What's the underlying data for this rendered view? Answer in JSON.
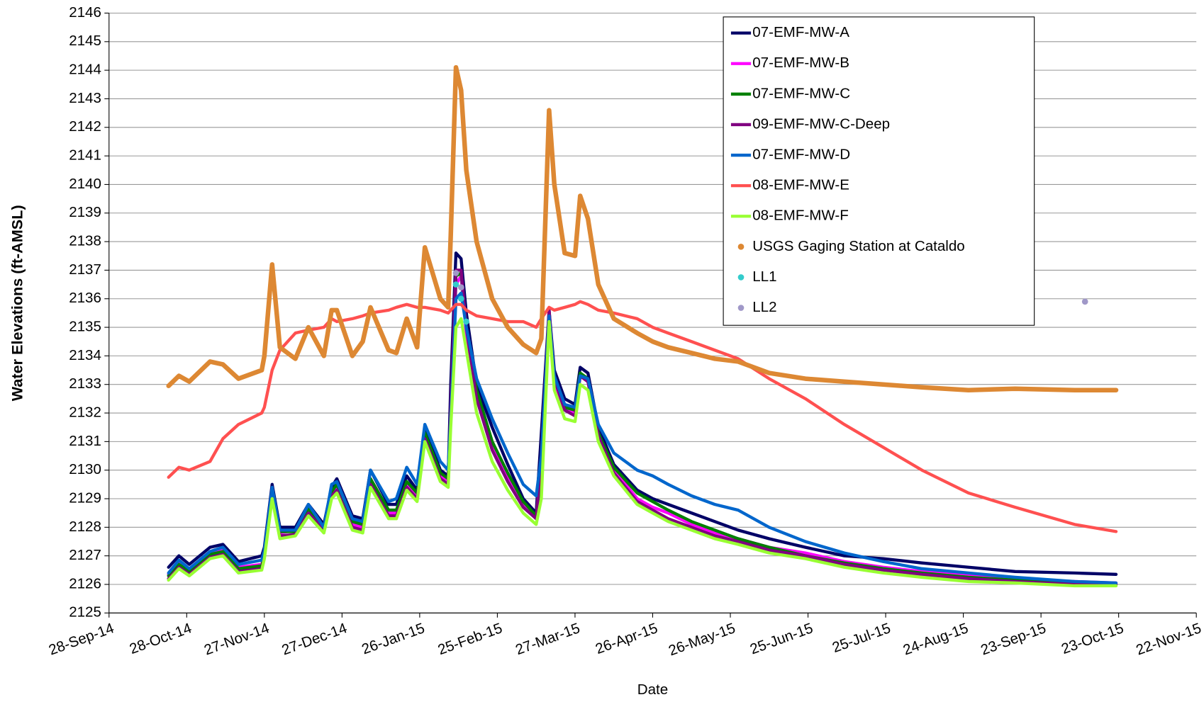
{
  "chart_data": {
    "type": "line",
    "x_label": "Date",
    "y_label": "Water Elevations (ft-AMSL)",
    "xlim": [
      "2014-09-28",
      "2015-11-22"
    ],
    "xticks": [
      {
        "value": "2014-09-28",
        "label": "28-Sep-14"
      },
      {
        "value": "2014-10-28",
        "label": "28-Oct-14"
      },
      {
        "value": "2014-11-27",
        "label": "27-Nov-14"
      },
      {
        "value": "2014-12-27",
        "label": "27-Dec-14"
      },
      {
        "value": "2015-01-26",
        "label": "26-Jan-15"
      },
      {
        "value": "2015-02-25",
        "label": "25-Feb-15"
      },
      {
        "value": "2015-03-27",
        "label": "27-Mar-15"
      },
      {
        "value": "2015-04-26",
        "label": "26-Apr-15"
      },
      {
        "value": "2015-05-26",
        "label": "26-May-15"
      },
      {
        "value": "2015-06-25",
        "label": "25-Jun-15"
      },
      {
        "value": "2015-07-25",
        "label": "25-Jul-15"
      },
      {
        "value": "2015-08-24",
        "label": "24-Aug-15"
      },
      {
        "value": "2015-09-23",
        "label": "23-Sep-15"
      },
      {
        "value": "2015-10-23",
        "label": "23-Oct-15"
      },
      {
        "value": "2015-11-22",
        "label": "22-Nov-15"
      }
    ],
    "ylim": [
      2125,
      2146
    ],
    "yticks": [
      2125,
      2126,
      2127,
      2128,
      2129,
      2130,
      2131,
      2132,
      2133,
      2134,
      2135,
      2136,
      2137,
      2138,
      2139,
      2140,
      2141,
      2142,
      2143,
      2144,
      2145,
      2146
    ],
    "grid": "y",
    "legend": "upper right",
    "x": [
      "2014-10-21",
      "2014-10-25",
      "2014-10-29",
      "2014-11-06",
      "2014-11-11",
      "2014-11-17",
      "2014-11-26",
      "2014-11-27",
      "2014-11-30",
      "2014-12-03",
      "2014-12-09",
      "2014-12-14",
      "2014-12-20",
      "2014-12-23",
      "2014-12-25",
      "2014-12-31",
      "2015-01-04",
      "2015-01-07",
      "2015-01-14",
      "2015-01-17",
      "2015-01-21",
      "2015-01-25",
      "2015-01-28",
      "2015-02-03",
      "2015-02-06",
      "2015-02-07",
      "2015-02-09",
      "2015-02-11",
      "2015-02-13",
      "2015-02-17",
      "2015-02-23",
      "2015-03-01",
      "2015-03-07",
      "2015-03-12",
      "2015-03-14",
      "2015-03-17",
      "2015-03-19",
      "2015-03-23",
      "2015-03-27",
      "2015-03-29",
      "2015-04-01",
      "2015-04-05",
      "2015-04-11",
      "2015-04-20",
      "2015-04-26",
      "2015-05-02",
      "2015-05-11",
      "2015-05-20",
      "2015-05-29",
      "2015-06-10",
      "2015-06-24",
      "2015-07-09",
      "2015-07-24",
      "2015-08-08",
      "2015-08-26",
      "2015-09-13",
      "2015-10-06",
      "2015-10-22"
    ],
    "series": [
      {
        "name": "07-EMF-MW-A",
        "color": "#000066",
        "style": "line",
        "values": [
          2126.6,
          2127.0,
          2126.7,
          2127.3,
          2127.4,
          2126.8,
          2127.0,
          2127.3,
          2129.5,
          2128.0,
          2128.0,
          2128.8,
          2128.1,
          2129.4,
          2129.7,
          2128.4,
          2128.3,
          2130.0,
          2128.8,
          2128.8,
          2129.8,
          2129.3,
          2131.5,
          2130.0,
          2129.8,
          2133.0,
          2137.6,
          2137.4,
          2135.5,
          2133.0,
          2131.5,
          2130.2,
          2129.0,
          2128.5,
          2131.3,
          2135.6,
          2133.5,
          2132.5,
          2132.3,
          2133.6,
          2133.4,
          2131.5,
          2130.2,
          2129.3,
          2129.0,
          2128.8,
          2128.5,
          2128.2,
          2127.9,
          2127.6,
          2127.3,
          2127.0,
          2126.9,
          2126.75,
          2126.6,
          2126.45,
          2126.4,
          2126.35
        ]
      },
      {
        "name": "07-EMF-MW-B",
        "color": "#ff00ff",
        "style": "line",
        "values": [
          2126.35,
          2126.75,
          2126.5,
          2127.1,
          2127.2,
          2126.6,
          2126.7,
          2127.1,
          2129.2,
          2127.8,
          2127.9,
          2128.6,
          2128.0,
          2129.2,
          2129.4,
          2128.1,
          2128.0,
          2129.6,
          2128.5,
          2128.5,
          2129.5,
          2129.1,
          2131.2,
          2129.8,
          2129.6,
          2131.8,
          2136.5,
          2136.8,
          2134.8,
          2132.5,
          2130.8,
          2129.7,
          2128.8,
          2128.3,
          2129.8,
          2135.4,
          2133.1,
          2132.1,
          2132.0,
          2133.3,
          2133.1,
          2131.3,
          2130.0,
          2129.0,
          2128.7,
          2128.5,
          2128.1,
          2127.8,
          2127.6,
          2127.3,
          2127.1,
          2126.8,
          2126.6,
          2126.45,
          2126.3,
          2126.2,
          2126.1,
          2126.05
        ]
      },
      {
        "name": "07-EMF-MW-C",
        "color": "#008000",
        "style": "line",
        "values": [
          2126.3,
          2126.7,
          2126.45,
          2127.05,
          2127.15,
          2126.55,
          2126.65,
          2127.05,
          2129.3,
          2127.85,
          2127.85,
          2128.65,
          2128.0,
          2129.25,
          2129.5,
          2128.2,
          2128.1,
          2129.7,
          2128.6,
          2128.6,
          2129.6,
          2129.2,
          2131.3,
          2129.9,
          2129.7,
          2132.0,
          2136.8,
          2136.9,
          2135.0,
          2132.8,
          2131.0,
          2129.9,
          2128.9,
          2128.4,
          2130.0,
          2135.5,
          2133.2,
          2132.2,
          2132.1,
          2133.4,
          2133.2,
          2131.3,
          2130.1,
          2129.2,
          2128.9,
          2128.6,
          2128.2,
          2127.9,
          2127.6,
          2127.3,
          2127.0,
          2126.75,
          2126.55,
          2126.4,
          2126.25,
          2126.15,
          2126.05,
          2126.0
        ]
      },
      {
        "name": "09-EMF-MW-C-Deep",
        "color": "#800080",
        "style": "line",
        "values": [
          2126.2,
          2126.6,
          2126.35,
          2126.95,
          2127.05,
          2126.45,
          2126.55,
          2126.95,
          2129.1,
          2127.7,
          2127.75,
          2128.5,
          2127.9,
          2129.1,
          2129.3,
          2128.0,
          2127.9,
          2129.5,
          2128.4,
          2128.4,
          2129.4,
          2129.0,
          2131.1,
          2129.7,
          2129.5,
          2132.2,
          2137.0,
          2137.0,
          2135.0,
          2132.5,
          2130.7,
          2129.6,
          2128.7,
          2128.3,
          2130.5,
          2135.6,
          2133.2,
          2132.1,
          2131.9,
          2133.3,
          2133.1,
          2131.2,
          2129.9,
          2128.9,
          2128.6,
          2128.3,
          2128.0,
          2127.7,
          2127.5,
          2127.2,
          2127.0,
          2126.7,
          2126.5,
          2126.35,
          2126.2,
          2126.1,
          2126.0,
          2126.0
        ]
      },
      {
        "name": "07-EMF-MW-D",
        "color": "#0066cc",
        "style": "line",
        "values": [
          2126.4,
          2126.85,
          2126.55,
          2127.15,
          2127.3,
          2126.7,
          2126.85,
          2127.2,
          2129.4,
          2127.9,
          2127.9,
          2128.8,
          2128.0,
          2129.5,
          2129.6,
          2128.3,
          2128.2,
          2130.0,
          2128.9,
          2129.0,
          2130.1,
          2129.5,
          2131.6,
          2130.3,
          2130.0,
          2131.8,
          2136.0,
          2136.2,
          2135.0,
          2133.2,
          2131.8,
          2130.6,
          2129.5,
          2129.1,
          2130.5,
          2135.4,
          2133.3,
          2132.3,
          2132.2,
          2133.3,
          2133.2,
          2131.6,
          2130.6,
          2130.0,
          2129.8,
          2129.5,
          2129.1,
          2128.8,
          2128.6,
          2128.0,
          2127.5,
          2127.1,
          2126.8,
          2126.55,
          2126.4,
          2126.25,
          2126.1,
          2126.05
        ]
      },
      {
        "name": "08-EMF-MW-E",
        "color": "#ff5050",
        "style": "line",
        "values": [
          2129.75,
          2130.1,
          2130.0,
          2130.3,
          2131.1,
          2131.6,
          2132.0,
          2132.2,
          2133.5,
          2134.2,
          2134.8,
          2134.9,
          2135.0,
          2135.3,
          2135.2,
          2135.3,
          2135.4,
          2135.5,
          2135.6,
          2135.7,
          2135.8,
          2135.7,
          2135.7,
          2135.6,
          2135.5,
          2135.6,
          2135.8,
          2135.8,
          2135.6,
          2135.4,
          2135.3,
          2135.2,
          2135.2,
          2135.0,
          2135.3,
          2135.7,
          2135.6,
          2135.7,
          2135.8,
          2135.9,
          2135.8,
          2135.6,
          2135.5,
          2135.3,
          2135.0,
          2134.8,
          2134.5,
          2134.2,
          2133.9,
          2133.2,
          2132.5,
          2131.6,
          2130.8,
          2130.0,
          2129.2,
          2128.7,
          2128.1,
          2127.85
        ]
      },
      {
        "name": "08-EMF-MW-F",
        "color": "#99ff33",
        "style": "line",
        "values": [
          2126.15,
          2126.55,
          2126.3,
          2126.9,
          2127.0,
          2126.4,
          2126.5,
          2126.9,
          2129.0,
          2127.6,
          2127.7,
          2128.4,
          2127.8,
          2129.0,
          2129.2,
          2127.9,
          2127.8,
          2129.4,
          2128.3,
          2128.3,
          2129.3,
          2128.9,
          2131.0,
          2129.6,
          2129.4,
          2131.5,
          2135.0,
          2135.3,
          2134.2,
          2132.0,
          2130.3,
          2129.3,
          2128.5,
          2128.1,
          2129.0,
          2135.2,
          2132.8,
          2131.8,
          2131.7,
          2133.0,
          2132.8,
          2131.0,
          2129.8,
          2128.8,
          2128.5,
          2128.2,
          2127.9,
          2127.6,
          2127.4,
          2127.1,
          2126.9,
          2126.6,
          2126.4,
          2126.25,
          2126.1,
          2126.05,
          2125.95,
          2125.95
        ]
      },
      {
        "name": "USGS Gaging Station at Cataldo",
        "color": "#dd8833",
        "style": "dots-line",
        "values": [
          2132.95,
          2133.3,
          2133.1,
          2133.8,
          2133.7,
          2133.2,
          2133.5,
          2134.0,
          2137.2,
          2134.3,
          2133.9,
          2135.0,
          2134.0,
          2135.6,
          2135.6,
          2134.0,
          2134.5,
          2135.7,
          2134.2,
          2134.1,
          2135.3,
          2134.3,
          2137.8,
          2136.0,
          2135.7,
          2138.2,
          2144.1,
          2143.3,
          2140.5,
          2138.0,
          2136.0,
          2135.0,
          2134.4,
          2134.1,
          2134.6,
          2142.6,
          2140.0,
          2137.6,
          2137.5,
          2139.6,
          2138.8,
          2136.5,
          2135.3,
          2134.8,
          2134.5,
          2134.3,
          2134.1,
          2133.9,
          2133.8,
          2133.4,
          2133.2,
          2133.1,
          2133.0,
          2132.9,
          2132.8,
          2132.85,
          2132.8,
          2132.8
        ]
      },
      {
        "name": "LL1",
        "color": "#33cccc",
        "style": "markers",
        "x": [
          "2015-02-09",
          "2015-02-11",
          "2015-02-13"
        ],
        "values": [
          2136.5,
          2136.0,
          2135.2
        ]
      },
      {
        "name": "LL2",
        "color": "#a098c8",
        "style": "markers",
        "x": [
          "2015-02-09",
          "2015-02-11",
          "2015-10-10"
        ],
        "values": [
          2136.9,
          2136.4,
          2135.9
        ]
      }
    ]
  }
}
